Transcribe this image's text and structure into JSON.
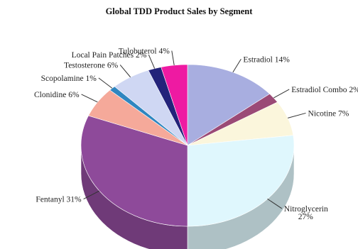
{
  "chart_data": {
    "type": "pie",
    "title": "Global TDD Product Sales by Segment",
    "style": "3d",
    "slices": [
      {
        "label": "Estradiol 14%",
        "value": 14,
        "color": "#a8aee0"
      },
      {
        "label": "Estradiol Combo 2%",
        "value": 2,
        "color": "#9b4a76"
      },
      {
        "label": "Nicotine 7%",
        "value": 7,
        "color": "#fbf6dc"
      },
      {
        "label": "Nitroglycerin\n27%",
        "value": 27,
        "color": "#dff7fd"
      },
      {
        "label": "Fentanyl 31%",
        "value": 31,
        "color": "#8e4a9a"
      },
      {
        "label": "Clonidine 6%",
        "value": 6,
        "color": "#f5a99a"
      },
      {
        "label": "Scopolamine 1%",
        "value": 1,
        "color": "#2f86c0"
      },
      {
        "label": "Testosterone 6%",
        "value": 6,
        "color": "#cfd7f3"
      },
      {
        "label": "Local Pain Patches 2%",
        "value": 2,
        "color": "#23237a"
      },
      {
        "label": "Tulobuterol 4%",
        "value": 4,
        "color": "#ee1aa2"
      }
    ]
  }
}
